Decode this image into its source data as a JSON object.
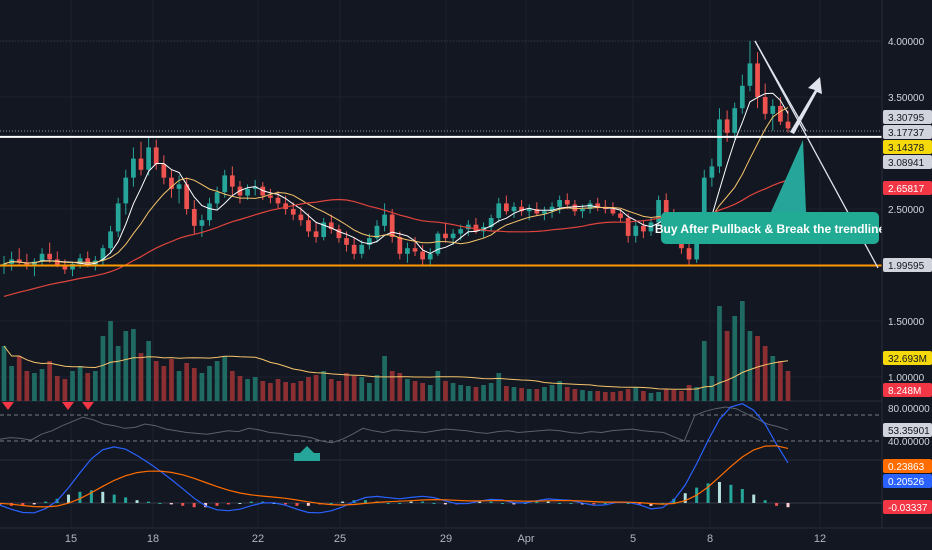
{
  "chart_data": {
    "type": "candlestick",
    "x_ticks": [
      "15",
      "18",
      "22",
      "25",
      "29",
      "Apr",
      "5",
      "8",
      "12"
    ],
    "price_axis_ticks": [
      "4.00000",
      "3.50000",
      "2.50000",
      "1.50000",
      "1.00000"
    ],
    "price_labels": [
      {
        "value": "3.30795",
        "color": "#d1d4dc",
        "text_color": "#131722"
      },
      {
        "value": "3.17737",
        "color": "#d1d4dc",
        "text_color": "#131722"
      },
      {
        "value": "3.14378",
        "color": "#f5d90a",
        "text_color": "#131722"
      },
      {
        "value": "3.08941",
        "color": "#d1d4dc",
        "text_color": "#131722"
      },
      {
        "value": "2.65817",
        "color": "#f23645",
        "text_color": "#ffffff"
      },
      {
        "value": "1.99595",
        "color": "#d1d4dc",
        "text_color": "#131722"
      }
    ],
    "horizontal_lines": [
      {
        "value": 3.14378,
        "color": "#ffffff"
      },
      {
        "value": 1.99595,
        "color": "#ff9800"
      }
    ],
    "annotation": "Buy After Pullback & Break the trendline",
    "candles": [
      [
        2.0,
        2.08,
        1.92,
        2.01
      ],
      [
        2.01,
        2.12,
        1.95,
        2.05
      ],
      [
        2.05,
        2.15,
        2.0,
        2.02
      ],
      [
        2.02,
        2.1,
        1.96,
        1.99
      ],
      [
        1.99,
        2.06,
        1.9,
        2.03
      ],
      [
        2.03,
        2.15,
        2.0,
        2.1
      ],
      [
        2.1,
        2.2,
        2.02,
        2.05
      ],
      [
        2.05,
        2.12,
        1.98,
        2.0
      ],
      [
        2.0,
        2.05,
        1.92,
        1.96
      ],
      [
        1.96,
        2.03,
        1.9,
        2.01
      ],
      [
        2.01,
        2.1,
        1.97,
        2.06
      ],
      [
        2.06,
        2.12,
        1.98,
        2.0
      ],
      [
        2.0,
        2.08,
        1.95,
        2.04
      ],
      [
        2.04,
        2.18,
        2.0,
        2.15
      ],
      [
        2.15,
        2.35,
        2.1,
        2.3
      ],
      [
        2.3,
        2.6,
        2.25,
        2.55
      ],
      [
        2.55,
        2.85,
        2.45,
        2.78
      ],
      [
        2.78,
        3.05,
        2.7,
        2.95
      ],
      [
        2.95,
        3.1,
        2.8,
        2.85
      ],
      [
        2.85,
        3.15,
        2.8,
        3.05
      ],
      [
        3.05,
        3.12,
        2.85,
        2.9
      ],
      [
        2.9,
        2.98,
        2.72,
        2.78
      ],
      [
        2.78,
        2.85,
        2.6,
        2.68
      ],
      [
        2.68,
        2.8,
        2.55,
        2.72
      ],
      [
        2.72,
        2.78,
        2.45,
        2.5
      ],
      [
        2.5,
        2.58,
        2.28,
        2.35
      ],
      [
        2.35,
        2.45,
        2.25,
        2.4
      ],
      [
        2.4,
        2.6,
        2.35,
        2.55
      ],
      [
        2.55,
        2.7,
        2.5,
        2.65
      ],
      [
        2.65,
        2.85,
        2.6,
        2.8
      ],
      [
        2.8,
        2.88,
        2.62,
        2.7
      ],
      [
        2.7,
        2.75,
        2.55,
        2.62
      ],
      [
        2.62,
        2.72,
        2.58,
        2.68
      ],
      [
        2.68,
        2.76,
        2.62,
        2.7
      ],
      [
        2.7,
        2.74,
        2.58,
        2.62
      ],
      [
        2.62,
        2.68,
        2.55,
        2.6
      ],
      [
        2.6,
        2.66,
        2.5,
        2.55
      ],
      [
        2.55,
        2.62,
        2.45,
        2.5
      ],
      [
        2.5,
        2.56,
        2.4,
        2.45
      ],
      [
        2.45,
        2.52,
        2.35,
        2.4
      ],
      [
        2.4,
        2.46,
        2.25,
        2.3
      ],
      [
        2.3,
        2.38,
        2.2,
        2.25
      ],
      [
        2.25,
        2.42,
        2.22,
        2.38
      ],
      [
        2.38,
        2.45,
        2.28,
        2.32
      ],
      [
        2.32,
        2.36,
        2.2,
        2.24
      ],
      [
        2.24,
        2.3,
        2.12,
        2.18
      ],
      [
        2.18,
        2.24,
        2.05,
        2.1
      ],
      [
        2.1,
        2.22,
        2.06,
        2.18
      ],
      [
        2.18,
        2.28,
        2.14,
        2.24
      ],
      [
        2.24,
        2.4,
        2.2,
        2.35
      ],
      [
        2.35,
        2.55,
        2.3,
        2.45
      ],
      [
        2.45,
        2.5,
        2.2,
        2.25
      ],
      [
        2.25,
        2.3,
        2.05,
        2.1
      ],
      [
        2.1,
        2.2,
        2.02,
        2.15
      ],
      [
        2.15,
        2.25,
        2.08,
        2.12
      ],
      [
        2.12,
        2.18,
        2.0,
        2.05
      ],
      [
        2.05,
        2.15,
        2.0,
        2.1
      ],
      [
        2.1,
        2.3,
        2.08,
        2.28
      ],
      [
        2.28,
        2.38,
        2.2,
        2.24
      ],
      [
        2.24,
        2.32,
        2.18,
        2.28
      ],
      [
        2.28,
        2.36,
        2.22,
        2.32
      ],
      [
        2.32,
        2.4,
        2.26,
        2.36
      ],
      [
        2.36,
        2.42,
        2.28,
        2.3
      ],
      [
        2.3,
        2.38,
        2.24,
        2.34
      ],
      [
        2.34,
        2.45,
        2.3,
        2.42
      ],
      [
        2.42,
        2.6,
        2.38,
        2.55
      ],
      [
        2.55,
        2.62,
        2.45,
        2.48
      ],
      [
        2.48,
        2.56,
        2.42,
        2.52
      ],
      [
        2.52,
        2.58,
        2.44,
        2.48
      ],
      [
        2.48,
        2.54,
        2.4,
        2.5
      ],
      [
        2.5,
        2.56,
        2.44,
        2.46
      ],
      [
        2.46,
        2.52,
        2.4,
        2.48
      ],
      [
        2.48,
        2.56,
        2.42,
        2.52
      ],
      [
        2.52,
        2.62,
        2.46,
        2.58
      ],
      [
        2.58,
        2.64,
        2.5,
        2.54
      ],
      [
        2.54,
        2.58,
        2.44,
        2.48
      ],
      [
        2.48,
        2.54,
        2.42,
        2.5
      ],
      [
        2.5,
        2.58,
        2.46,
        2.55
      ],
      [
        2.55,
        2.6,
        2.48,
        2.52
      ],
      [
        2.52,
        2.58,
        2.46,
        2.5
      ],
      [
        2.5,
        2.56,
        2.44,
        2.46
      ],
      [
        2.46,
        2.5,
        2.38,
        2.42
      ],
      [
        2.42,
        2.46,
        2.2,
        2.26
      ],
      [
        2.26,
        2.4,
        2.2,
        2.35
      ],
      [
        2.35,
        2.4,
        2.24,
        2.3
      ],
      [
        2.3,
        2.42,
        2.26,
        2.38
      ],
      [
        2.38,
        2.62,
        2.34,
        2.58
      ],
      [
        2.58,
        2.64,
        2.42,
        2.45
      ],
      [
        2.45,
        2.5,
        2.36,
        2.4
      ],
      [
        2.4,
        2.44,
        2.1,
        2.15
      ],
      [
        2.15,
        2.22,
        2.0,
        2.05
      ],
      [
        2.05,
        2.4,
        2.02,
        2.35
      ],
      [
        2.35,
        2.85,
        2.3,
        2.78
      ],
      [
        2.78,
        2.95,
        2.7,
        2.88
      ],
      [
        2.88,
        3.4,
        2.82,
        3.3
      ],
      [
        3.3,
        3.38,
        3.1,
        3.18
      ],
      [
        3.18,
        3.45,
        3.12,
        3.4
      ],
      [
        3.4,
        3.7,
        3.35,
        3.6
      ],
      [
        3.6,
        4.0,
        3.55,
        3.8
      ],
      [
        3.8,
        3.9,
        3.4,
        3.5
      ],
      [
        3.5,
        3.62,
        3.3,
        3.35
      ],
      [
        3.35,
        3.48,
        3.2,
        3.42
      ],
      [
        3.42,
        3.5,
        3.25,
        3.28
      ],
      [
        3.28,
        3.38,
        3.18,
        3.22
      ]
    ],
    "volume": [
      0.55,
      0.35,
      0.45,
      0.3,
      0.28,
      0.32,
      0.4,
      0.25,
      0.22,
      0.3,
      0.35,
      0.28,
      0.3,
      0.65,
      0.8,
      0.55,
      0.7,
      0.72,
      0.48,
      0.6,
      0.4,
      0.35,
      0.42,
      0.3,
      0.38,
      0.33,
      0.28,
      0.35,
      0.4,
      0.45,
      0.3,
      0.25,
      0.22,
      0.24,
      0.2,
      0.18,
      0.22,
      0.19,
      0.18,
      0.2,
      0.24,
      0.26,
      0.3,
      0.22,
      0.2,
      0.28,
      0.25,
      0.24,
      0.18,
      0.26,
      0.45,
      0.3,
      0.28,
      0.22,
      0.2,
      0.18,
      0.16,
      0.3,
      0.2,
      0.18,
      0.16,
      0.15,
      0.14,
      0.16,
      0.18,
      0.28,
      0.15,
      0.14,
      0.13,
      0.12,
      0.12,
      0.14,
      0.16,
      0.2,
      0.14,
      0.12,
      0.11,
      0.1,
      0.1,
      0.09,
      0.09,
      0.1,
      0.12,
      0.14,
      0.1,
      0.08,
      0.09,
      0.12,
      0.11,
      0.1,
      0.16,
      0.14,
      0.6,
      0.25,
      0.95,
      0.7,
      0.85,
      1.0,
      0.7,
      0.65,
      0.55,
      0.45,
      0.4,
      0.3
    ],
    "rsi_levels": [
      "80.00000",
      "53.35901",
      "40.00000"
    ],
    "rsi_line": [
      42,
      44,
      43,
      41,
      48,
      52,
      58,
      63,
      68,
      65,
      60,
      58,
      55,
      56,
      60,
      58,
      54,
      52,
      50,
      49,
      48,
      50,
      52,
      51,
      55,
      53,
      50,
      49,
      47,
      46,
      44,
      40,
      38,
      42,
      48,
      55,
      52,
      50,
      53,
      52,
      51,
      50,
      52,
      54,
      53,
      52,
      50,
      49,
      51,
      52,
      50,
      51,
      52,
      53,
      52,
      50,
      49,
      51,
      50,
      52,
      53,
      54,
      52,
      51,
      50,
      45,
      40,
      70,
      75,
      78,
      80,
      78,
      72,
      66,
      60,
      57,
      53
    ],
    "macd_values": [
      "0.23863",
      "0.20526",
      "-0.03337"
    ],
    "macd_hist": [
      -0.01,
      -0.02,
      -0.02,
      -0.01,
      0.01,
      0.03,
      0.06,
      0.08,
      0.09,
      0.08,
      0.06,
      0.04,
      0.02,
      0.01,
      0.0,
      -0.01,
      -0.02,
      -0.03,
      -0.03,
      -0.02,
      -0.01,
      0.0,
      0.01,
      0.01,
      0.0,
      -0.01,
      -0.02,
      -0.02,
      -0.01,
      0.0,
      0.01,
      0.02,
      0.02,
      0.01,
      0.0,
      0.0,
      0.01,
      0.01,
      0.0,
      -0.01,
      -0.01,
      0.0,
      0.01,
      0.01,
      0.0,
      -0.01,
      0.0,
      0.01,
      0.01,
      0.0,
      0.0,
      -0.01,
      -0.01,
      0.0,
      0.01,
      0.0,
      -0.01,
      -0.02,
      0.0,
      0.03,
      0.07,
      0.11,
      0.14,
      0.15,
      0.13,
      0.1,
      0.06,
      0.02,
      -0.02,
      -0.03
    ]
  }
}
